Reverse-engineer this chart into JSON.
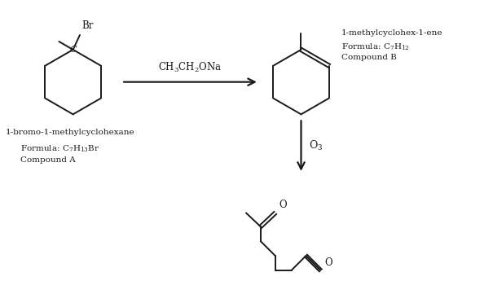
{
  "bg_color": "#ffffff",
  "line_color": "#1a1a1a",
  "line_width": 1.4,
  "text_color": "#1a1a1a",
  "fig_width": 6.05,
  "fig_height": 3.72,
  "dpi": 100,
  "compound_a_label": "1-bromo-1-methylcyclohexane",
  "compound_a_formula_pre": "Formula: C",
  "compound_a_formula_sub1": "7",
  "compound_a_formula_mid": "H",
  "compound_a_formula_sub2": "13",
  "compound_a_formula_post": "Br",
  "compound_a_name2": "Compound A",
  "compound_b_label": "1-methylcyclohex-1-ene",
  "compound_b_formula_pre": "Formula: C",
  "compound_b_formula_sub1": "7",
  "compound_b_formula_mid": "H",
  "compound_b_formula_sub2": "12",
  "compound_b_name2": "Compound B",
  "reagent1": "CH",
  "reagent1_sub": "3",
  "reagent1_mid": "CH",
  "reagent1_sub2": "2",
  "reagent1_post": "ONa",
  "reagent2": "O",
  "reagent2_sub": "3"
}
